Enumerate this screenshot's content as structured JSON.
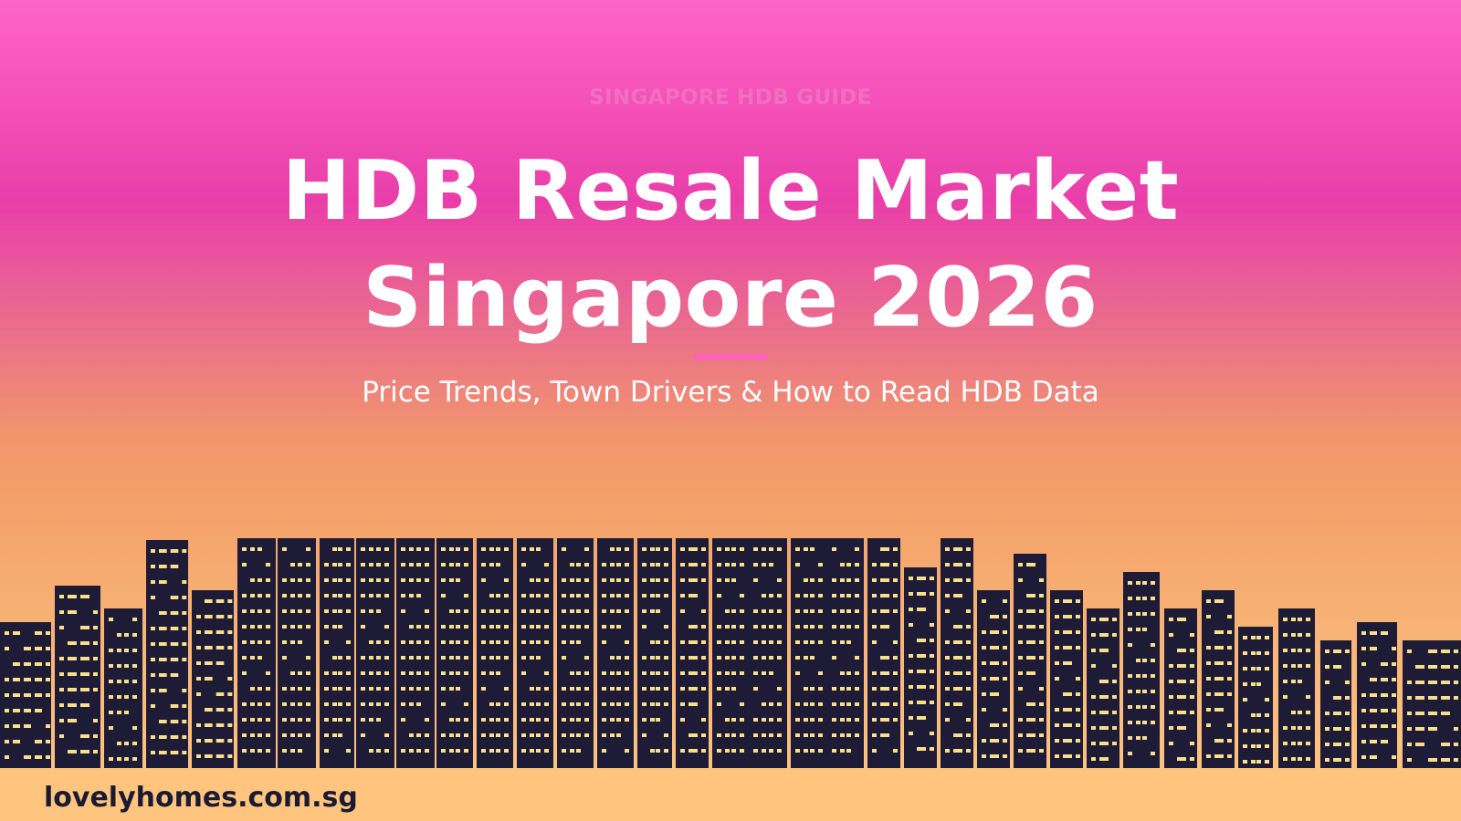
{
  "header": {
    "eyebrow": "SINGAPORE HDB GUIDE",
    "title_line1": "HDB Resale Market",
    "title_line2": "Singapore 2026",
    "subtitle": "Price Trends, Town Drivers & How to Read HDB Data"
  },
  "footer": {
    "site": "lovelyhomes.com.sg"
  },
  "colors": {
    "building": "#1e1b37",
    "window": "#f8df8a",
    "accent": "#ff5fbd",
    "background_top": "#ff64c8",
    "background_bottom": "#ffc97f"
  },
  "icons": {
    "skyline": "city-skyline-illustration"
  }
}
